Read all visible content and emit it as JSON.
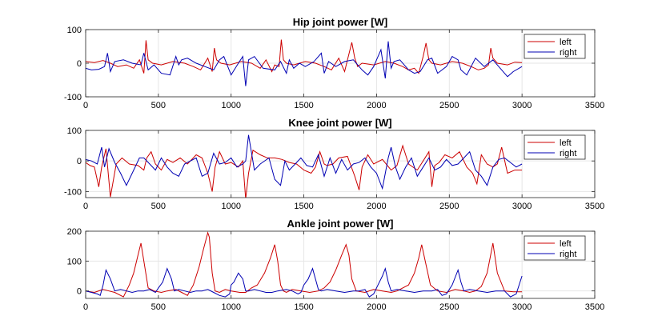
{
  "colors": {
    "left": "#cc0000",
    "right": "#0000b3",
    "grid": "#e6e6e6",
    "axis": "#262626"
  },
  "chart_data": [
    {
      "type": "line",
      "title": "Hip joint power [W]",
      "xlabel": "",
      "ylabel": "",
      "xlim": [
        0,
        3500
      ],
      "ylim": [
        -100,
        100
      ],
      "xticks": [
        0,
        500,
        1000,
        1500,
        2000,
        2500,
        3000,
        3500
      ],
      "yticks": [
        -100,
        0,
        100
      ],
      "grid": true,
      "legend_position": "top-right",
      "series": [
        {
          "name": "left",
          "color": "#cc0000",
          "x": [
            0,
            60,
            120,
            170,
            220,
            280,
            330,
            370,
            400,
            415,
            430,
            460,
            520,
            600,
            680,
            740,
            790,
            840,
            870,
            885,
            900,
            930,
            990,
            1070,
            1140,
            1200,
            1240,
            1280,
            1300,
            1330,
            1345,
            1360,
            1380,
            1430,
            1510,
            1580,
            1640,
            1690,
            1740,
            1780,
            1800,
            1830,
            1850,
            1870,
            1900,
            1980,
            2060,
            2120,
            2180,
            2220,
            2260,
            2290,
            2320,
            2340,
            2360,
            2380,
            2440,
            2520,
            2590,
            2650,
            2700,
            2740,
            2770,
            2785,
            2800,
            2830,
            2900,
            2950,
            3000
          ],
          "y": [
            5,
            2,
            8,
            0,
            -10,
            -5,
            -15,
            10,
            -30,
            68,
            10,
            0,
            -5,
            5,
            0,
            -10,
            -20,
            15,
            -25,
            45,
            10,
            0,
            -5,
            5,
            0,
            -15,
            10,
            -25,
            -5,
            -10,
            70,
            10,
            0,
            -5,
            5,
            0,
            -10,
            -20,
            15,
            -25,
            10,
            62,
            15,
            -10,
            0,
            -5,
            5,
            0,
            -10,
            -20,
            -15,
            -30,
            20,
            60,
            10,
            0,
            -5,
            5,
            0,
            -10,
            -20,
            -15,
            -5,
            45,
            15,
            0,
            -5,
            3,
            2
          ]
        },
        {
          "name": "right",
          "color": "#0000b3",
          "x": [
            0,
            40,
            90,
            130,
            150,
            170,
            200,
            260,
            320,
            380,
            400,
            430,
            470,
            520,
            580,
            620,
            640,
            660,
            700,
            760,
            820,
            880,
            920,
            950,
            1000,
            1050,
            1080,
            1100,
            1120,
            1160,
            1220,
            1300,
            1340,
            1380,
            1400,
            1430,
            1470,
            1510,
            1570,
            1620,
            1640,
            1670,
            1720,
            1780,
            1840,
            1900,
            1940,
            1980,
            2000,
            2030,
            2060,
            2080,
            2100,
            2120,
            2160,
            2220,
            2260,
            2300,
            2350,
            2380,
            2420,
            2480,
            2520,
            2560,
            2580,
            2620,
            2680,
            2740,
            2800,
            2860,
            2900,
            2940,
            3000
          ],
          "y": [
            -15,
            -20,
            -18,
            -10,
            30,
            -25,
            5,
            10,
            0,
            -5,
            30,
            -20,
            -5,
            -30,
            -35,
            20,
            -5,
            10,
            15,
            0,
            -10,
            -20,
            10,
            20,
            -35,
            0,
            20,
            -68,
            10,
            20,
            -15,
            -20,
            5,
            -30,
            10,
            -15,
            0,
            -10,
            5,
            30,
            -30,
            5,
            -10,
            5,
            10,
            -20,
            -35,
            -10,
            10,
            40,
            -45,
            65,
            -15,
            5,
            10,
            -20,
            -30,
            -25,
            10,
            15,
            -30,
            -10,
            20,
            10,
            -20,
            -35,
            15,
            -10,
            10,
            -20,
            -40,
            -25,
            -10
          ]
        }
      ]
    },
    {
      "type": "line",
      "title": "Knee joint power [W]",
      "xlabel": "",
      "ylabel": "",
      "xlim": [
        0,
        3500
      ],
      "ylim": [
        -120,
        100
      ],
      "xticks": [
        0,
        500,
        1000,
        1500,
        2000,
        2500,
        3000,
        3500
      ],
      "yticks": [
        -100,
        0,
        100
      ],
      "grid": true,
      "legend_position": "top-right",
      "series": [
        {
          "name": "left",
          "color": "#cc0000",
          "x": [
            0,
            30,
            60,
            90,
            110,
            140,
            170,
            210,
            250,
            300,
            360,
            400,
            420,
            450,
            480,
            520,
            560,
            600,
            650,
            700,
            760,
            800,
            840,
            870,
            890,
            920,
            960,
            1000,
            1050,
            1080,
            1100,
            1120,
            1150,
            1200,
            1250,
            1300,
            1350,
            1400,
            1450,
            1500,
            1550,
            1580,
            1610,
            1640,
            1660,
            1700,
            1740,
            1800,
            1850,
            1880,
            1900,
            1940,
            1980,
            2040,
            2100,
            2140,
            2180,
            2220,
            2280,
            2320,
            2360,
            2380,
            2400,
            2430,
            2470,
            2520,
            2570,
            2620,
            2660,
            2690,
            2720,
            2760,
            2800,
            2830,
            2860,
            2900,
            2950,
            3000
          ],
          "y": [
            -5,
            -15,
            -20,
            -85,
            -20,
            40,
            -118,
            -10,
            10,
            -10,
            -15,
            -30,
            10,
            30,
            -10,
            -30,
            5,
            -5,
            10,
            -10,
            20,
            10,
            -40,
            -100,
            -20,
            30,
            -10,
            -5,
            -20,
            0,
            -125,
            -40,
            35,
            20,
            10,
            10,
            5,
            -5,
            -10,
            -30,
            -40,
            -20,
            30,
            -10,
            -15,
            -10,
            10,
            15,
            -50,
            -95,
            -20,
            20,
            -10,
            5,
            -30,
            -15,
            50,
            -10,
            -30,
            0,
            30,
            -85,
            -15,
            -5,
            20,
            10,
            30,
            -20,
            -40,
            -75,
            20,
            -10,
            -20,
            -10,
            45,
            -40,
            -30,
            -30
          ]
        },
        {
          "name": "right",
          "color": "#0000b3",
          "x": [
            0,
            40,
            80,
            110,
            130,
            160,
            200,
            240,
            280,
            330,
            370,
            400,
            440,
            480,
            520,
            560,
            600,
            640,
            680,
            720,
            760,
            800,
            840,
            880,
            920,
            960,
            1000,
            1040,
            1080,
            1100,
            1120,
            1160,
            1200,
            1260,
            1300,
            1340,
            1370,
            1400,
            1440,
            1480,
            1520,
            1560,
            1600,
            1640,
            1680,
            1720,
            1760,
            1800,
            1840,
            1880,
            1920,
            1960,
            2000,
            2040,
            2080,
            2100,
            2130,
            2160,
            2200,
            2240,
            2280,
            2320,
            2360,
            2400,
            2440,
            2480,
            2520,
            2560,
            2600,
            2640,
            2680,
            2720,
            2760,
            2800,
            2840,
            2880,
            2920,
            2960,
            3000
          ],
          "y": [
            5,
            0,
            -10,
            45,
            -20,
            40,
            -5,
            -40,
            -80,
            -30,
            10,
            10,
            -10,
            -30,
            10,
            -20,
            -40,
            -50,
            -10,
            0,
            10,
            -50,
            -40,
            25,
            -10,
            -5,
            10,
            -20,
            -10,
            0,
            85,
            -30,
            -10,
            10,
            -60,
            -80,
            0,
            -30,
            -10,
            10,
            -15,
            -20,
            20,
            -50,
            10,
            -40,
            5,
            -30,
            -10,
            -5,
            10,
            -20,
            -40,
            -90,
            10,
            45,
            -20,
            -60,
            -20,
            10,
            -50,
            -20,
            10,
            -30,
            -20,
            5,
            -15,
            -10,
            10,
            30,
            -30,
            -50,
            -80,
            -20,
            5,
            10,
            -5,
            -20,
            -10
          ]
        }
      ]
    },
    {
      "type": "line",
      "title": "Ankle joint power [W]",
      "xlabel": "",
      "ylabel": "",
      "xlim": [
        0,
        3500
      ],
      "ylim": [
        -25,
        200
      ],
      "xticks": [
        0,
        500,
        1000,
        1500,
        2000,
        2500,
        3000,
        3500
      ],
      "yticks": [
        0,
        100,
        200
      ],
      "grid": true,
      "legend_position": "top-right",
      "series": [
        {
          "name": "left",
          "color": "#cc0000",
          "x": [
            0,
            60,
            120,
            160,
            200,
            260,
            300,
            330,
            360,
            380,
            400,
            430,
            470,
            520,
            560,
            620,
            660,
            700,
            740,
            780,
            810,
            840,
            850,
            870,
            890,
            920,
            960,
            1000,
            1060,
            1100,
            1140,
            1180,
            1230,
            1270,
            1300,
            1320,
            1340,
            1360,
            1380,
            1420,
            1480,
            1540,
            1600,
            1640,
            1680,
            1720,
            1760,
            1790,
            1810,
            1830,
            1860,
            1920,
            1980,
            2040,
            2100,
            2140,
            2180,
            2220,
            2260,
            2290,
            2310,
            2330,
            2370,
            2420,
            2480,
            2540,
            2600,
            2640,
            2680,
            2720,
            2760,
            2780,
            2800,
            2830,
            2880,
            2940,
            3000
          ],
          "y": [
            0,
            -5,
            5,
            0,
            -5,
            -20,
            20,
            60,
            120,
            160,
            100,
            10,
            0,
            -5,
            0,
            5,
            -5,
            -15,
            20,
            80,
            140,
            195,
            180,
            60,
            0,
            -5,
            5,
            0,
            -5,
            -5,
            10,
            20,
            60,
            110,
            155,
            100,
            20,
            0,
            -5,
            5,
            0,
            -5,
            0,
            10,
            30,
            70,
            120,
            155,
            120,
            40,
            0,
            -5,
            5,
            0,
            -5,
            0,
            10,
            20,
            60,
            110,
            155,
            110,
            20,
            0,
            -5,
            5,
            0,
            -5,
            0,
            15,
            60,
            110,
            160,
            60,
            0,
            -3,
            -3
          ]
        },
        {
          "name": "right",
          "color": "#0000b3",
          "x": [
            0,
            40,
            80,
            100,
            120,
            140,
            170,
            200,
            240,
            280,
            320,
            360,
            400,
            440,
            480,
            500,
            530,
            560,
            590,
            610,
            640,
            680,
            720,
            760,
            800,
            840,
            880,
            920,
            960,
            990,
            1000,
            1020,
            1050,
            1080,
            1100,
            1120,
            1160,
            1200,
            1240,
            1280,
            1320,
            1380,
            1420,
            1460,
            1480,
            1500,
            1530,
            1560,
            1580,
            1600,
            1620,
            1660,
            1720,
            1780,
            1840,
            1880,
            1920,
            1950,
            1980,
            2010,
            2040,
            2060,
            2080,
            2100,
            2140,
            2200,
            2260,
            2320,
            2380,
            2420,
            2450,
            2480,
            2520,
            2560,
            2580,
            2600,
            2640,
            2700,
            2760,
            2820,
            2880,
            2920,
            2960,
            3000
          ],
          "y": [
            0,
            -5,
            -10,
            -15,
            20,
            70,
            40,
            0,
            5,
            0,
            -5,
            0,
            0,
            5,
            -5,
            10,
            30,
            75,
            40,
            0,
            5,
            0,
            -5,
            0,
            0,
            5,
            -5,
            -15,
            -20,
            -10,
            20,
            30,
            60,
            40,
            0,
            0,
            5,
            0,
            -5,
            -5,
            0,
            5,
            0,
            -10,
            -5,
            20,
            40,
            75,
            40,
            5,
            0,
            5,
            0,
            -5,
            0,
            0,
            5,
            -20,
            -10,
            20,
            50,
            75,
            30,
            0,
            5,
            0,
            -5,
            0,
            0,
            5,
            -15,
            -10,
            20,
            70,
            30,
            0,
            5,
            0,
            -5,
            0,
            0,
            -20,
            -10,
            50
          ]
        }
      ]
    }
  ]
}
